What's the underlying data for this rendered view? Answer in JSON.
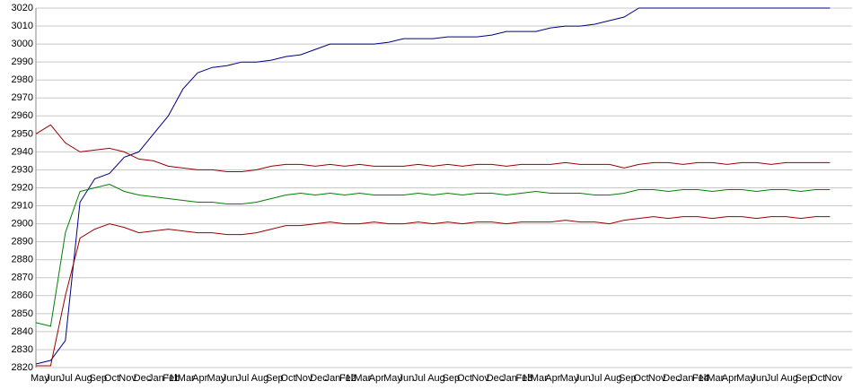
{
  "chart_data": {
    "type": "line",
    "categories": [
      "May",
      "Jun",
      "Jul",
      "Aug",
      "Sep",
      "Oct",
      "Nov",
      "Dec",
      "Jan '11",
      "Feb",
      "Mar",
      "Apr",
      "May",
      "Jun",
      "Jul",
      "Aug",
      "Sep",
      "Oct",
      "Nov",
      "Dec",
      "Jan '12",
      "Feb",
      "Mar",
      "Apr",
      "May",
      "Jun",
      "Jul",
      "Aug",
      "Sep",
      "Oct",
      "Nov",
      "Dec",
      "Jan '13",
      "Feb",
      "Mar",
      "Apr",
      "May",
      "Jun",
      "Jul",
      "Aug",
      "Sep",
      "Oct",
      "Nov",
      "Dec",
      "Jan '14",
      "Feb",
      "Mar",
      "Apr",
      "May",
      "Jun",
      "Jul",
      "Aug",
      "Sep",
      "Oct",
      "Nov"
    ],
    "series": [
      {
        "color": "#000080",
        "values": [
          2822,
          2824,
          2835,
          2912,
          2925,
          2928,
          2937,
          2940,
          2950,
          2960,
          2975,
          2984,
          2987,
          2988,
          2990,
          2990,
          2991,
          2993,
          2994,
          2997,
          3000,
          3000,
          3000,
          3000,
          3001,
          3003,
          3003,
          3003,
          3004,
          3004,
          3004,
          3005,
          3007,
          3007,
          3007,
          3009,
          3010,
          3010,
          3011,
          3013,
          3015,
          3020,
          3020,
          3020,
          3020,
          3020,
          3020,
          3020,
          3020,
          3020,
          3020,
          3020,
          3020,
          3020,
          3020
        ]
      },
      {
        "color": "#990000",
        "values": [
          2950,
          2955,
          2945,
          2940,
          2941,
          2942,
          2940,
          2936,
          2935,
          2932,
          2931,
          2930,
          2930,
          2929,
          2929,
          2930,
          2932,
          2933,
          2933,
          2932,
          2933,
          2932,
          2933,
          2932,
          2932,
          2932,
          2933,
          2932,
          2933,
          2932,
          2933,
          2933,
          2932,
          2933,
          2933,
          2933,
          2934,
          2933,
          2933,
          2933,
          2931,
          2933,
          2934,
          2934,
          2933,
          2934,
          2934,
          2933,
          2934,
          2934,
          2933,
          2934,
          2934,
          2934,
          2934
        ]
      },
      {
        "color": "#008000",
        "values": [
          2845,
          2843,
          2895,
          2918,
          2920,
          2922,
          2918,
          2916,
          2915,
          2914,
          2913,
          2912,
          2912,
          2911,
          2911,
          2912,
          2914,
          2916,
          2917,
          2916,
          2917,
          2916,
          2917,
          2916,
          2916,
          2916,
          2917,
          2916,
          2917,
          2916,
          2917,
          2917,
          2916,
          2917,
          2918,
          2917,
          2917,
          2917,
          2916,
          2916,
          2917,
          2919,
          2919,
          2918,
          2919,
          2919,
          2918,
          2919,
          2919,
          2918,
          2919,
          2919,
          2918,
          2919,
          2919
        ]
      },
      {
        "color": "#990000",
        "values": [
          2821,
          2821,
          2860,
          2892,
          2897,
          2900,
          2898,
          2895,
          2896,
          2897,
          2896,
          2895,
          2895,
          2894,
          2894,
          2895,
          2897,
          2899,
          2899,
          2900,
          2901,
          2900,
          2900,
          2901,
          2900,
          2900,
          2901,
          2900,
          2901,
          2900,
          2901,
          2901,
          2900,
          2901,
          2901,
          2901,
          2902,
          2901,
          2901,
          2900,
          2902,
          2903,
          2904,
          2903,
          2904,
          2904,
          2903,
          2904,
          2904,
          2903,
          2904,
          2904,
          2903,
          2904,
          2904
        ]
      }
    ],
    "ylim": [
      2820,
      3020
    ],
    "yticks": [
      2820,
      2830,
      2840,
      2850,
      2860,
      2870,
      2880,
      2890,
      2900,
      2910,
      2920,
      2930,
      2940,
      2950,
      2960,
      2970,
      2980,
      2990,
      3000,
      3010,
      3020
    ],
    "grid": true
  }
}
